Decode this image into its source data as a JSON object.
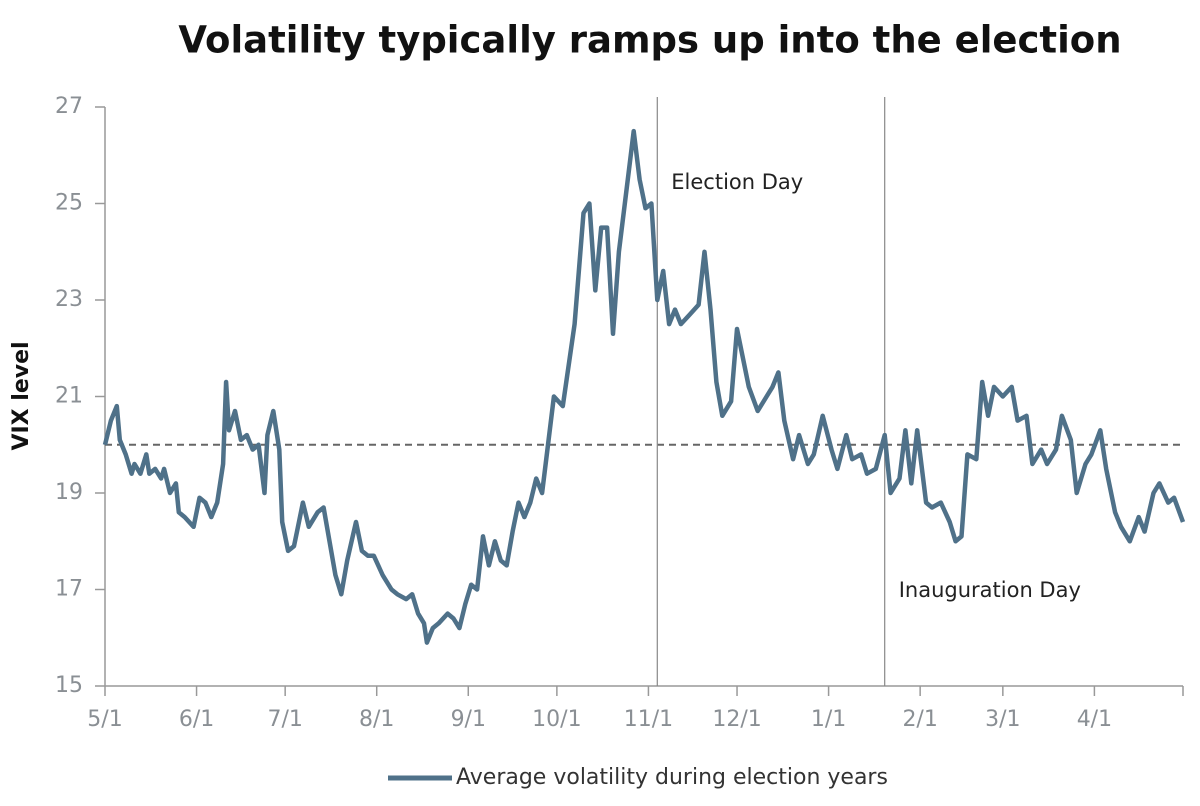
{
  "chart_data": {
    "type": "line",
    "title": "Volatility typically ramps up into the election",
    "y_label": "VIX level",
    "x": [
      0,
      2,
      4,
      5,
      7,
      9,
      10,
      12,
      14,
      15,
      17,
      19,
      20,
      22,
      24,
      25,
      27,
      30,
      32,
      34,
      36,
      38,
      40,
      41,
      42,
      44,
      46,
      48,
      50,
      52,
      54,
      55,
      57,
      59,
      60,
      62,
      64,
      65,
      67,
      69,
      72,
      74,
      76,
      78,
      80,
      82,
      85,
      87,
      89,
      91,
      94,
      97,
      99,
      102,
      104,
      106,
      108,
      109,
      111,
      113,
      116,
      118,
      120,
      122,
      124,
      126,
      128,
      130,
      132,
      134,
      136,
      138,
      140,
      142,
      144,
      146,
      148,
      150,
      152,
      155,
      159,
      162,
      164,
      166,
      168,
      170,
      172,
      174,
      177,
      179,
      181,
      183,
      185,
      187,
      189,
      191,
      193,
      195,
      198,
      201,
      203,
      205,
      207,
      209,
      212,
      214,
      216,
      218,
      221,
      224,
      226,
      228,
      230,
      233,
      235,
      238,
      240,
      243,
      246,
      248,
      251,
      253,
      256,
      258,
      261,
      264,
      266,
      269,
      271,
      273,
      275,
      278,
      280,
      283,
      286,
      288,
      290,
      292,
      295,
      297,
      299,
      301,
      304,
      307,
      309,
      312,
      314,
      317,
      319,
      322,
      324,
      327,
      329,
      332,
      334,
      337,
      339,
      342,
      344,
      347,
      350,
      352,
      355,
      357,
      360,
      362,
      365
    ],
    "series": [
      {
        "name": "Average volatility during election years",
        "color": "#4f7189",
        "values": [
          20.0,
          20.5,
          20.8,
          20.1,
          19.8,
          19.4,
          19.6,
          19.4,
          19.8,
          19.4,
          19.5,
          19.3,
          19.5,
          19.0,
          19.2,
          18.6,
          18.5,
          18.3,
          18.9,
          18.8,
          18.5,
          18.8,
          19.6,
          21.3,
          20.3,
          20.7,
          20.1,
          20.2,
          19.9,
          20.0,
          19.0,
          20.2,
          20.7,
          19.9,
          18.4,
          17.8,
          17.9,
          18.2,
          18.8,
          18.3,
          18.6,
          18.7,
          18.0,
          17.3,
          16.9,
          17.6,
          18.4,
          17.8,
          17.7,
          17.7,
          17.3,
          17.0,
          16.9,
          16.8,
          16.9,
          16.5,
          16.3,
          15.9,
          16.2,
          16.3,
          16.5,
          16.4,
          16.2,
          16.7,
          17.1,
          17.0,
          18.1,
          17.5,
          18.0,
          17.6,
          17.5,
          18.2,
          18.8,
          18.5,
          18.8,
          19.3,
          19.0,
          20.0,
          21.0,
          20.8,
          22.5,
          24.8,
          25.0,
          23.2,
          24.5,
          24.5,
          22.3,
          24.0,
          25.5,
          26.5,
          25.5,
          24.9,
          25.0,
          23.0,
          23.6,
          22.5,
          22.8,
          22.5,
          22.7,
          22.9,
          24.0,
          22.8,
          21.3,
          20.6,
          20.9,
          22.4,
          21.8,
          21.2,
          20.7,
          21.0,
          21.2,
          21.5,
          20.5,
          19.7,
          20.2,
          19.6,
          19.8,
          20.6,
          19.9,
          19.5,
          20.2,
          19.7,
          19.8,
          19.4,
          19.5,
          20.2,
          19.0,
          19.3,
          20.3,
          19.2,
          20.3,
          18.8,
          18.7,
          18.8,
          18.4,
          18.0,
          18.1,
          19.8,
          19.7,
          21.3,
          20.6,
          21.2,
          21.0,
          21.2,
          20.5,
          20.6,
          19.6,
          19.9,
          19.6,
          19.9,
          20.6,
          20.1,
          19.0,
          19.6,
          19.8,
          20.3,
          19.5,
          18.6,
          18.3,
          18.0,
          18.5,
          18.2,
          19.0,
          19.2,
          18.8,
          18.9,
          18.4
        ]
      }
    ],
    "xlim": [
      0,
      365
    ],
    "xticks": [
      {
        "value": 0,
        "label": "5/1"
      },
      {
        "value": 31,
        "label": "6/1"
      },
      {
        "value": 61,
        "label": "7/1"
      },
      {
        "value": 92,
        "label": "8/1"
      },
      {
        "value": 123,
        "label": "9/1"
      },
      {
        "value": 153,
        "label": "10/1"
      },
      {
        "value": 184,
        "label": "11/1"
      },
      {
        "value": 214,
        "label": "12/1"
      },
      {
        "value": 245,
        "label": "1/1"
      },
      {
        "value": 276,
        "label": "2/1"
      },
      {
        "value": 304,
        "label": "3/1"
      },
      {
        "value": 335,
        "label": "4/1"
      }
    ],
    "ylim": [
      15,
      27
    ],
    "yticks": [
      15,
      17,
      19,
      21,
      23,
      25,
      27
    ],
    "reference_line": 20,
    "vlines": [
      {
        "x": 187,
        "label": "Election Day"
      },
      {
        "x": 264,
        "label": "Inauguration Day"
      }
    ],
    "legend": "bottom"
  }
}
